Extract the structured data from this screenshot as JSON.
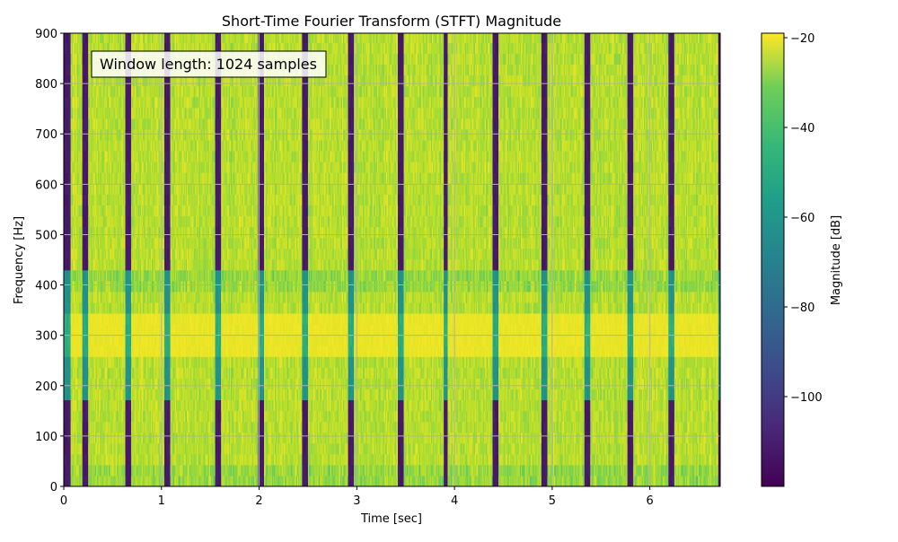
{
  "chart_data": {
    "type": "heatmap",
    "title": "Short-Time Fourier Transform (STFT) Magnitude",
    "xlabel": "Time [sec]",
    "ylabel": "Frequency [Hz]",
    "xlim": [
      0,
      6.72
    ],
    "ylim": [
      0,
      900
    ],
    "x_ticks": [
      0,
      1,
      2,
      3,
      4,
      5,
      6
    ],
    "y_ticks": [
      0,
      100,
      200,
      300,
      400,
      500,
      600,
      700,
      800,
      900
    ],
    "grid": true,
    "colormap": "viridis",
    "colorbar": {
      "label": "Magnitude [dB]",
      "range": [
        -120,
        -19
      ],
      "ticks": [
        -20,
        -40,
        -60,
        -80,
        -100
      ],
      "tick_labels": [
        "−20",
        "−40",
        "−60",
        "−80",
        "−100"
      ]
    },
    "annotation": "Window length: 1024 samples",
    "silent_intervals_sec": [
      [
        0.0,
        0.07
      ],
      [
        0.19,
        0.25
      ],
      [
        0.63,
        0.69
      ],
      [
        1.03,
        1.09
      ],
      [
        1.55,
        1.61
      ],
      [
        1.99,
        2.05
      ],
      [
        2.44,
        2.5
      ],
      [
        2.91,
        2.97
      ],
      [
        3.42,
        3.48
      ],
      [
        3.89,
        3.93
      ],
      [
        4.39,
        4.45
      ],
      [
        4.89,
        4.95
      ],
      [
        5.33,
        5.39
      ],
      [
        5.77,
        5.83
      ],
      [
        6.19,
        6.25
      ],
      [
        6.7,
        6.72
      ]
    ],
    "dominant_band_hz": [
      260,
      345
    ],
    "typical_magnitude_db": {
      "strong_band": -22,
      "signal": -30,
      "silence": -115
    }
  }
}
